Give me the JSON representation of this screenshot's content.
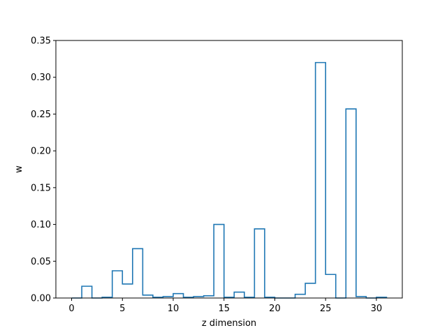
{
  "chart_data": {
    "type": "histogram-step",
    "xlabel": "z dimension",
    "ylabel": "w",
    "xlim": [
      -1.55,
      32.55
    ],
    "ylim": [
      0,
      0.35
    ],
    "grid": false,
    "x_ticks": [
      0,
      5,
      10,
      15,
      20,
      25,
      30
    ],
    "y_ticks": [
      0.0,
      0.05,
      0.1,
      0.15,
      0.2,
      0.25,
      0.3,
      0.35
    ],
    "x_tick_labels": [
      "0",
      "5",
      "10",
      "15",
      "20",
      "25",
      "30"
    ],
    "y_tick_labels": [
      "0.00",
      "0.05",
      "0.10",
      "0.15",
      "0.20",
      "0.25",
      "0.30",
      "0.35"
    ],
    "bin_edges": [
      0,
      1,
      2,
      3,
      4,
      5,
      6,
      7,
      8,
      9,
      10,
      11,
      12,
      13,
      14,
      15,
      16,
      17,
      18,
      19,
      20,
      21,
      22,
      23,
      24,
      25,
      26,
      27,
      28,
      29,
      30,
      31
    ],
    "values": [
      0.0,
      0.016,
      0.0,
      0.001,
      0.037,
      0.019,
      0.067,
      0.004,
      0.001,
      0.002,
      0.006,
      0.001,
      0.002,
      0.003,
      0.1,
      0.001,
      0.008,
      0.001,
      0.094,
      0.001,
      0.0,
      0.0,
      0.005,
      0.02,
      0.32,
      0.032,
      0.0,
      0.257,
      0.002,
      0.0,
      0.001
    ],
    "color": "#1f77b4"
  }
}
